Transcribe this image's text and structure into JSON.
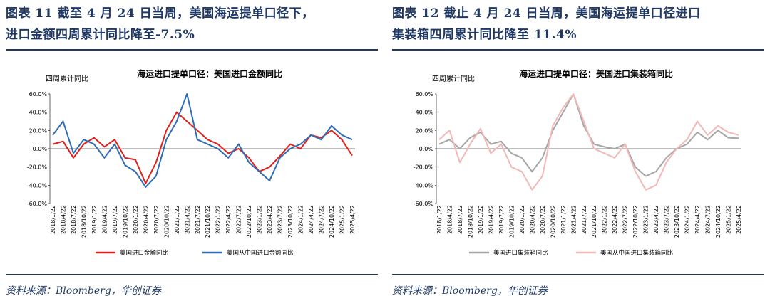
{
  "panels": [
    {
      "figure_title_line1": "图表 11   截至 4 月 24 日当周，美国海运提单口径下，",
      "figure_title_line2": "进口金额四周累计同比降至-7.5%",
      "source": "资料来源：Bloomberg，华创证券"
    },
    {
      "figure_title_line1": "图表 12   截止 4 月 24 日当周，美国海运提单口径进口",
      "figure_title_line2": "集装箱四周累计同比降至 11.4%",
      "source": "资料来源：Bloomberg，华创证券"
    }
  ],
  "chart_data": [
    {
      "type": "line",
      "title": "海运进口提单口径：美国进口金额同比",
      "ylabel": "四周累计同比",
      "ylim": [
        -60,
        60
      ],
      "yticks": [
        "60.0%",
        "40.0%",
        "20.0%",
        "0.0%",
        "-20.0%",
        "-40.0%",
        "-60.0%"
      ],
      "x": [
        "2018/1/22",
        "2018/4/22",
        "2018/7/22",
        "2018/10/22",
        "2019/1/22",
        "2019/4/22",
        "2019/7/22",
        "2019/10/22",
        "2020/1/22",
        "2020/4/22",
        "2020/7/22",
        "2020/10/22",
        "2021/1/22",
        "2021/4/22",
        "2021/7/22",
        "2021/10/22",
        "2022/1/22",
        "2022/4/22",
        "2022/7/22",
        "2022/10/22",
        "2023/1/22",
        "2023/4/22",
        "2023/7/22",
        "2023/10/22",
        "2024/1/22",
        "2024/4/22",
        "2024/7/22",
        "2024/10/22",
        "2025/1/22",
        "2025/4/22"
      ],
      "series": [
        {
          "name": "美国进口金额同比",
          "color": "#e0201b",
          "values": [
            5,
            8,
            -10,
            5,
            12,
            2,
            10,
            -10,
            -12,
            -38,
            -15,
            20,
            40,
            30,
            20,
            10,
            5,
            -5,
            0,
            -10,
            -25,
            -20,
            -8,
            5,
            0,
            15,
            12,
            20,
            10,
            -7.5
          ]
        },
        {
          "name": "美国从中国进口金额同比",
          "color": "#2e6db4",
          "values": [
            15,
            30,
            -5,
            10,
            5,
            -10,
            5,
            -18,
            -25,
            -42,
            -30,
            10,
            30,
            60,
            10,
            5,
            0,
            -10,
            5,
            -15,
            -25,
            -35,
            -10,
            0,
            5,
            15,
            10,
            25,
            15,
            10
          ]
        }
      ]
    },
    {
      "type": "line",
      "title": "海运进口提单口径：美国进口集装箱同比",
      "ylabel": "四周累计同比",
      "ylim": [
        -60,
        60
      ],
      "yticks": [
        "60.0%",
        "40.0%",
        "20.0%",
        "0.0%",
        "-20.0%",
        "-40.0%",
        "-60.0%"
      ],
      "x": [
        "2018/1/22",
        "2018/4/22",
        "2018/7/22",
        "2018/10/22",
        "2019/1/22",
        "2019/4/22",
        "2019/7/22",
        "2019/10/22",
        "2020/1/22",
        "2020/4/22",
        "2020/7/22",
        "2020/10/22",
        "2021/1/22",
        "2021/4/22",
        "2021/7/22",
        "2021/10/22",
        "2022/1/22",
        "2022/4/22",
        "2022/7/22",
        "2022/10/22",
        "2023/1/22",
        "2023/4/22",
        "2023/7/22",
        "2023/10/22",
        "2024/1/22",
        "2024/4/22",
        "2024/7/22",
        "2024/10/22",
        "2025/1/22",
        "2025/4/22"
      ],
      "series": [
        {
          "name": "美国进口集装箱同比",
          "color": "#a6a6a6",
          "values": [
            5,
            10,
            0,
            12,
            18,
            5,
            8,
            -5,
            -10,
            -25,
            -10,
            20,
            40,
            60,
            25,
            5,
            2,
            0,
            5,
            -20,
            -30,
            -25,
            -10,
            0,
            5,
            18,
            10,
            20,
            12,
            11.4
          ]
        },
        {
          "name": "美国从中国进口集装箱同比",
          "color": "#f2b8b8",
          "values": [
            10,
            20,
            -15,
            5,
            22,
            -5,
            5,
            -20,
            -25,
            -45,
            -30,
            25,
            45,
            65,
            30,
            0,
            -5,
            -10,
            5,
            -25,
            -45,
            -40,
            -15,
            0,
            10,
            30,
            15,
            25,
            18,
            15
          ]
        }
      ]
    }
  ]
}
